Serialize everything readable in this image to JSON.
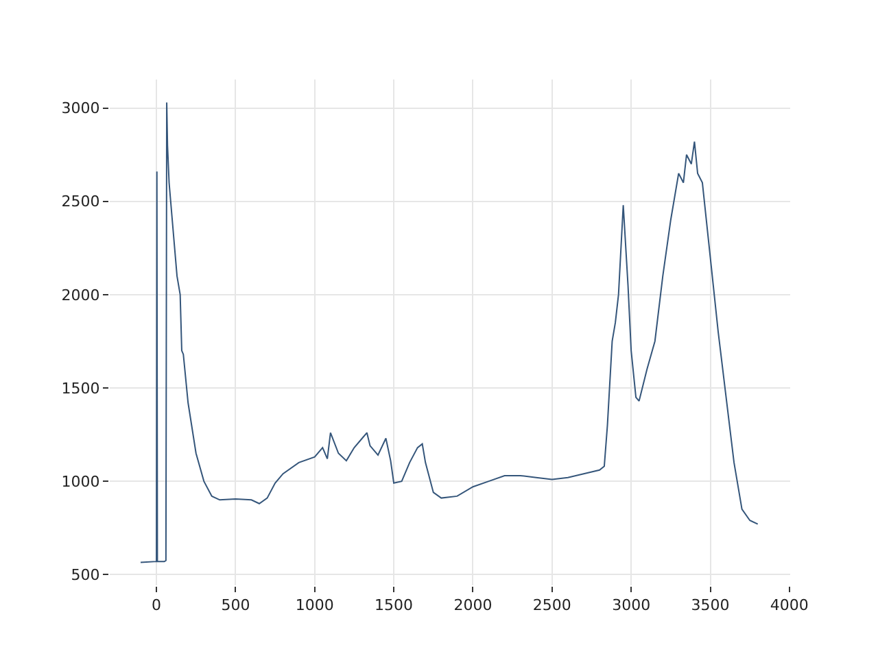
{
  "chart_data": {
    "type": "line",
    "x": [
      -100,
      0,
      3,
      6,
      10,
      50,
      60,
      65,
      70,
      80,
      100,
      130,
      150,
      160,
      170,
      200,
      250,
      300,
      350,
      400,
      500,
      600,
      650,
      700,
      750,
      800,
      900,
      1000,
      1050,
      1080,
      1100,
      1150,
      1200,
      1250,
      1300,
      1330,
      1350,
      1400,
      1450,
      1480,
      1500,
      1550,
      1600,
      1650,
      1680,
      1700,
      1750,
      1800,
      1900,
      2000,
      2100,
      2200,
      2300,
      2400,
      2500,
      2600,
      2700,
      2800,
      2830,
      2850,
      2880,
      2900,
      2920,
      2950,
      2980,
      3000,
      3030,
      3050,
      3100,
      3150,
      3200,
      3250,
      3300,
      3330,
      3350,
      3380,
      3400,
      3420,
      3450,
      3500,
      3550,
      3600,
      3650,
      3700,
      3750,
      3800
    ],
    "values": [
      565,
      570,
      2660,
      570,
      570,
      570,
      575,
      3030,
      2800,
      2600,
      2400,
      2100,
      2000,
      1700,
      1680,
      1420,
      1150,
      1000,
      920,
      900,
      905,
      900,
      880,
      910,
      990,
      1040,
      1100,
      1130,
      1180,
      1120,
      1260,
      1150,
      1110,
      1180,
      1230,
      1260,
      1190,
      1140,
      1230,
      1110,
      990,
      1000,
      1100,
      1180,
      1200,
      1100,
      940,
      910,
      920,
      970,
      1000,
      1030,
      1030,
      1020,
      1010,
      1020,
      1040,
      1060,
      1080,
      1300,
      1750,
      1850,
      2000,
      2480,
      2050,
      1700,
      1450,
      1430,
      1600,
      1750,
      2100,
      2400,
      2650,
      2600,
      2750,
      2700,
      2820,
      2650,
      2600,
      2200,
      1800,
      1450,
      1100,
      850,
      790,
      770
    ],
    "color": "#34557a",
    "xlim": [
      -295,
      4005
    ],
    "ylim": [
      442,
      3153
    ],
    "xticks": [
      0,
      500,
      1000,
      1500,
      2000,
      2500,
      3000,
      3500,
      4000
    ],
    "yticks": [
      500,
      1000,
      1500,
      2000,
      2500,
      3000
    ],
    "grid": true
  }
}
